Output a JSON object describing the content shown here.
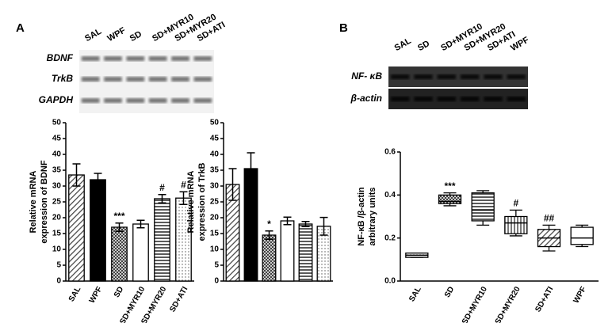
{
  "panel_a": {
    "label": "A",
    "lanes": [
      "SAL",
      "WPF",
      "SD",
      "SD+MYR10",
      "SD+MYR20",
      "SD+ATI"
    ],
    "rows": [
      "BDNF",
      "TrkB",
      "GAPDH"
    ]
  },
  "panel_b": {
    "label": "B",
    "lanes": [
      "SAL",
      "SD",
      "SD+MYR10",
      "SD+MYR20",
      "SD+ATI",
      "WPF"
    ],
    "rows": [
      "NF- κB",
      "β-actin"
    ]
  },
  "chart_data": [
    {
      "type": "bar",
      "ylabel": [
        "Relative mRNA",
        "expression of BDNF"
      ],
      "categories": [
        "SAL",
        "WPF",
        "SD",
        "SD+MYR10",
        "SD+MYR20",
        "SD+ATI"
      ],
      "values": [
        33.5,
        32,
        17,
        18,
        26,
        26.2
      ],
      "errors": [
        3.5,
        2,
        1.3,
        1.2,
        1.3,
        2
      ],
      "annotations": [
        null,
        null,
        "***",
        null,
        "#",
        "#"
      ],
      "color": "#000000",
      "ylim": [
        0,
        50
      ],
      "yticks": [
        0,
        5,
        10,
        15,
        20,
        25,
        30,
        35,
        40,
        45,
        50
      ]
    },
    {
      "type": "bar",
      "ylabel": [
        "Relative mRNA",
        "expression of TrkB"
      ],
      "categories": [
        null,
        null,
        null,
        null,
        null,
        null
      ],
      "values": [
        30.5,
        35.5,
        14.5,
        19,
        18,
        17.3
      ],
      "errors": [
        5,
        5,
        1.3,
        1.2,
        0.8,
        2.8
      ],
      "annotations": [
        null,
        null,
        "*",
        null,
        null,
        null
      ],
      "color": "#000000",
      "ylim": [
        0,
        50
      ],
      "yticks": [
        0,
        5,
        10,
        15,
        20,
        25,
        30,
        35,
        40,
        45,
        50
      ]
    },
    {
      "type": "box",
      "ylabel": [
        "NF-κB /β-actin",
        "arbitrary units"
      ],
      "categories": [
        "SAL",
        "SD",
        "SD+MYR10",
        "SD+MYR20",
        "SD+ATI",
        "WPF"
      ],
      "boxes": [
        {
          "min": 0.11,
          "q1": 0.11,
          "median": 0.12,
          "q3": 0.13,
          "max": 0.13
        },
        {
          "min": 0.35,
          "q1": 0.36,
          "median": 0.37,
          "q3": 0.4,
          "max": 0.41
        },
        {
          "min": 0.26,
          "q1": 0.28,
          "median": 0.33,
          "q3": 0.41,
          "max": 0.42
        },
        {
          "min": 0.21,
          "q1": 0.22,
          "median": 0.27,
          "q3": 0.3,
          "max": 0.33
        },
        {
          "min": 0.14,
          "q1": 0.16,
          "median": 0.2,
          "q3": 0.24,
          "max": 0.26
        },
        {
          "min": 0.16,
          "q1": 0.17,
          "median": 0.2,
          "q3": 0.25,
          "max": 0.26
        }
      ],
      "annotations": [
        null,
        "***",
        null,
        "#",
        "##",
        null
      ],
      "color": "#000000",
      "ylim": [
        0,
        0.6
      ],
      "yticks": [
        {
          "value": 0,
          "label": "0.0"
        },
        0.2,
        0.4,
        0.6
      ]
    }
  ]
}
